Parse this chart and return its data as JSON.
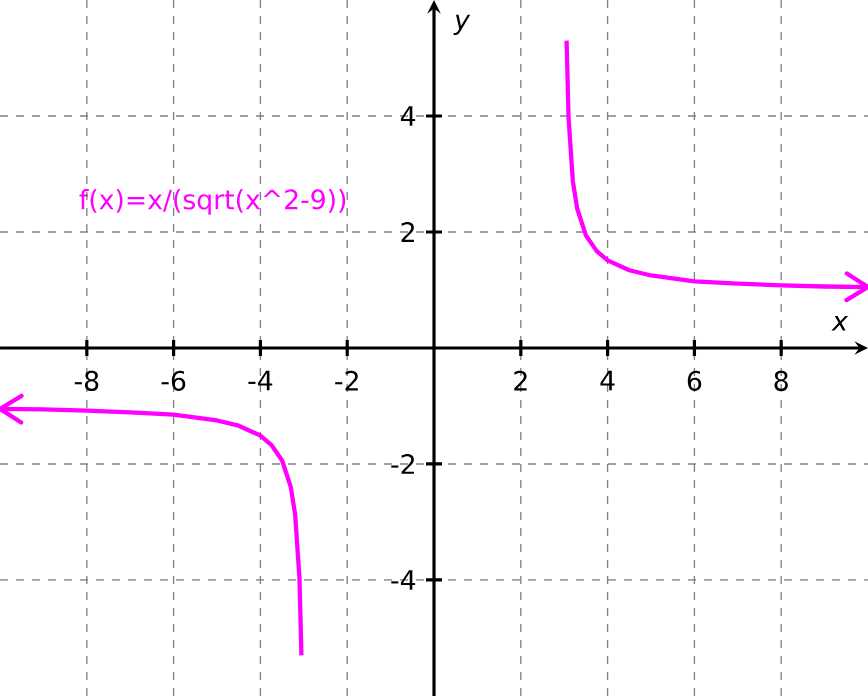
{
  "chart_data": {
    "type": "line",
    "xlabel": "x",
    "ylabel": "y",
    "annotations": [
      {
        "text": "f(x)=x/(sqrt(x^2-9))"
      }
    ],
    "series": [
      {
        "color": "#ff00ff",
        "x": [
          3.055,
          3.1,
          3.2,
          3.3,
          3.5,
          3.75,
          4,
          4.5,
          5,
          6,
          7,
          8,
          9,
          10
        ],
        "values": [
          5.3,
          3.97,
          2.87,
          2.4,
          1.94,
          1.67,
          1.51,
          1.34,
          1.25,
          1.15,
          1.11,
          1.08,
          1.06,
          1.05
        ]
      },
      {
        "color": "#ff00ff",
        "x": [
          -10,
          -9,
          -8,
          -7,
          -6,
          -5,
          -4.5,
          -4,
          -3.75,
          -3.5,
          -3.3,
          -3.2,
          -3.1,
          -3.055
        ],
        "values": [
          -1.05,
          -1.06,
          -1.08,
          -1.11,
          -1.15,
          -1.25,
          -1.34,
          -1.51,
          -1.67,
          -1.94,
          -2.4,
          -2.87,
          -3.97,
          -5.3
        ]
      }
    ],
    "xlim": [
      -10,
      10
    ],
    "ylim": [
      -6,
      6
    ],
    "xticks": [
      -8,
      -6,
      -4,
      -2,
      2,
      4,
      6,
      8
    ],
    "yticks": [
      -4,
      -2,
      2,
      4
    ],
    "grid": true
  }
}
